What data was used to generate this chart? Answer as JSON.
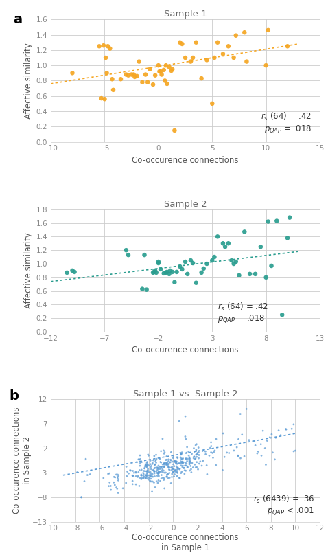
{
  "plot1": {
    "title": "Sample 1",
    "xlabel": "Co-occurence connections",
    "ylabel": "Affective similarity",
    "color": "#F5A623",
    "xlim": [
      -10,
      15
    ],
    "ylim": [
      0,
      1.6
    ],
    "xticks": [
      -10,
      -5,
      0,
      5,
      10,
      15
    ],
    "yticks": [
      0,
      0.2,
      0.4,
      0.6,
      0.8,
      1.0,
      1.2,
      1.4,
      1.6
    ],
    "trendline_x": [
      -10,
      13
    ],
    "trendline_y": [
      0.76,
      1.28
    ],
    "x": [
      -8,
      -5.5,
      -5.3,
      -5.1,
      -5.0,
      -4.9,
      -4.8,
      -4.7,
      -4.5,
      -4.3,
      -4.2,
      -3.5,
      -3.0,
      -2.8,
      -2.5,
      -2.3,
      -2.2,
      -2.0,
      -1.8,
      -1.5,
      -1.2,
      -1.0,
      -0.8,
      -0.5,
      -0.3,
      0.0,
      0.1,
      0.2,
      0.3,
      0.5,
      0.6,
      0.7,
      0.8,
      1.0,
      1.2,
      1.3,
      1.5,
      2.0,
      2.2,
      2.5,
      3.0,
      3.2,
      3.5,
      4.0,
      4.5,
      5.0,
      5.2,
      5.5,
      6.0,
      6.5,
      7.0,
      7.2,
      8.0,
      8.2,
      10.0,
      10.2,
      12.0
    ],
    "y": [
      0.9,
      1.25,
      0.57,
      1.26,
      0.56,
      1.1,
      0.9,
      1.25,
      1.22,
      0.82,
      0.68,
      0.82,
      0.88,
      0.87,
      0.88,
      0.88,
      0.85,
      0.86,
      1.05,
      0.78,
      0.88,
      0.78,
      0.95,
      0.75,
      0.87,
      1.0,
      0.92,
      0.92,
      0.88,
      0.94,
      0.8,
      1.0,
      0.76,
      0.98,
      0.93,
      0.95,
      0.15,
      1.3,
      1.28,
      1.1,
      1.05,
      1.1,
      1.3,
      0.83,
      1.07,
      0.5,
      1.1,
      1.3,
      1.15,
      1.25,
      1.1,
      1.39,
      1.43,
      1.05,
      1.0,
      1.46,
      1.25
    ]
  },
  "plot2": {
    "title": "Sample 2",
    "xlabel": "Co-occurence connections",
    "ylabel": "Affective similarity",
    "color": "#2A9D8F",
    "xlim": [
      -12,
      13
    ],
    "ylim": [
      0,
      1.8
    ],
    "xticks": [
      -12,
      -7,
      -2,
      3,
      8,
      13
    ],
    "yticks": [
      0,
      0.2,
      0.4,
      0.6,
      0.8,
      1.0,
      1.2,
      1.4,
      1.6,
      1.8
    ],
    "trendline_x": [
      -12,
      11
    ],
    "trendline_y": [
      0.74,
      1.18
    ],
    "x": [
      -10.5,
      -10.0,
      -9.8,
      -5.0,
      -4.8,
      -3.5,
      -3.3,
      -3.1,
      -2.5,
      -2.4,
      -2.3,
      -2.2,
      -2.0,
      -2.0,
      -1.8,
      -1.5,
      -1.3,
      -1.2,
      -1.0,
      -0.9,
      -0.7,
      -0.5,
      -0.3,
      0.0,
      0.2,
      0.5,
      0.7,
      1.0,
      1.2,
      1.5,
      2.0,
      2.2,
      2.5,
      3.0,
      3.2,
      3.5,
      4.0,
      4.2,
      4.5,
      4.8,
      5.0,
      5.2,
      5.5,
      6.0,
      6.5,
      7.0,
      7.5,
      8.0,
      8.2,
      8.5,
      9.0,
      9.5,
      10.0,
      10.2
    ],
    "y": [
      0.87,
      0.9,
      0.88,
      1.2,
      1.13,
      0.63,
      1.13,
      0.62,
      0.87,
      0.88,
      0.9,
      0.87,
      1.03,
      1.01,
      0.92,
      0.86,
      0.87,
      0.88,
      0.85,
      0.9,
      0.88,
      0.73,
      0.88,
      0.96,
      0.92,
      1.03,
      0.85,
      1.05,
      1.01,
      0.72,
      0.87,
      0.93,
      1.0,
      1.05,
      1.1,
      1.4,
      1.3,
      1.25,
      1.3,
      1.05,
      1.0,
      1.03,
      0.83,
      1.47,
      0.85,
      0.85,
      1.25,
      0.8,
      1.62,
      0.97,
      1.63,
      0.25,
      1.38,
      1.68
    ]
  },
  "plot3": {
    "title": "Sample 1 vs. Sample 2",
    "xlabel": "Co-occurence connections\nin Sample 1",
    "ylabel": "Co-occurence connections\nin Sample 2",
    "color": "#5B9BD5",
    "xlim": [
      -10,
      12
    ],
    "ylim": [
      -13,
      12
    ],
    "xticks": [
      -10,
      -8,
      -6,
      -4,
      -2,
      0,
      2,
      4,
      6,
      8,
      10,
      12
    ],
    "yticks": [
      -13,
      -8,
      -3,
      2,
      7,
      12
    ],
    "trendline_x": [
      -9,
      10
    ],
    "trendline_y": [
      -3.5,
      5.0
    ]
  },
  "background_color": "#ffffff",
  "grid_color": "#cccccc",
  "title_color": "#666666",
  "axis_label_color": "#555555",
  "tick_color": "#888888",
  "annotation_color": "#333333"
}
